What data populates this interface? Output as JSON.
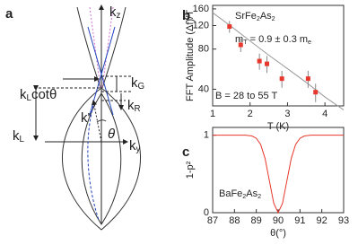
{
  "panel_labels": [
    "a",
    "b",
    "c"
  ],
  "diagram": {
    "kz": [
      {
        "text": "k"
      },
      {
        "text": "z",
        "sub": true
      }
    ],
    "ky": [
      {
        "text": "k"
      },
      {
        "text": "y",
        "sub": true
      }
    ],
    "kLcot": [
      {
        "text": "k"
      },
      {
        "text": "L",
        "sub": true
      },
      {
        "text": "cot"
      },
      {
        "text": "θ"
      }
    ],
    "kG": [
      {
        "text": "k"
      },
      {
        "text": "G",
        "sub": true
      }
    ],
    "kR": [
      {
        "text": "k"
      },
      {
        "text": "R",
        "sub": true
      }
    ],
    "kL": [
      {
        "text": "k"
      },
      {
        "text": "L",
        "sub": true
      }
    ],
    "kprime": [
      {
        "text": "k'"
      }
    ],
    "theta": [
      {
        "text": "θ"
      }
    ]
  },
  "chart_data": [
    {
      "type": "scatter",
      "ylabel": "FFT Amplitude (Δf)/T",
      "xlabel": "T (K)",
      "annotations": [
        [
          {
            "text": "SrFe"
          },
          {
            "text": "2",
            "sub": true
          },
          {
            "text": "As"
          },
          {
            "text": "2",
            "sub": true
          }
        ],
        [
          {
            "text": "m"
          },
          {
            "text": "T",
            "sub": true
          },
          {
            "text": " = 0.9 ± 0.3 m"
          },
          {
            "text": "e",
            "sub": true
          }
        ],
        [
          {
            "text": "B = 28 to 55 T"
          }
        ]
      ],
      "x": [
        1.45,
        1.75,
        2.25,
        2.45,
        2.85,
        3.55,
        3.75
      ],
      "values": [
        118,
        86,
        65,
        62,
        48,
        48,
        38
      ],
      "errors": [
        12,
        10,
        9,
        9,
        7,
        7,
        6
      ],
      "color": "#e8372c",
      "fit": {
        "x": [
          1,
          1.5,
          2,
          2.5,
          3,
          3.5,
          4,
          4.5
        ],
        "values": [
          150,
          118,
          92,
          72,
          57,
          45,
          35,
          28
        ],
        "color": "#9a9a9a"
      },
      "log_y": true,
      "xlim": [
        1,
        4.5
      ],
      "ylim": [
        30,
        170
      ],
      "xticks": [
        1,
        2,
        3,
        4
      ],
      "yticks": [
        40,
        80,
        120,
        160
      ]
    },
    {
      "type": "line",
      "ylabel": "1-p²",
      "xlabel": "θ(°)",
      "annotations": [
        [
          {
            "text": "BaFe"
          },
          {
            "text": "2",
            "sub": true
          },
          {
            "text": "As"
          },
          {
            "text": "2",
            "sub": true
          }
        ]
      ],
      "x": [
        87,
        88,
        88.5,
        88.8,
        89,
        89.2,
        89.4,
        89.6,
        89.8,
        90,
        90.2,
        90.4,
        90.6,
        90.8,
        91,
        91.2,
        91.5,
        92,
        93
      ],
      "values": [
        1,
        1,
        1,
        0.99,
        0.96,
        0.88,
        0.7,
        0.41,
        0.12,
        0,
        0.12,
        0.41,
        0.7,
        0.88,
        0.96,
        0.99,
        1,
        1,
        1
      ],
      "color": "#e8372c",
      "xlim": [
        87,
        93
      ],
      "ylim": [
        0,
        1.1
      ],
      "xticks": [
        87,
        88,
        89,
        90,
        91,
        92,
        93
      ],
      "yticks": [
        0,
        1
      ]
    }
  ]
}
